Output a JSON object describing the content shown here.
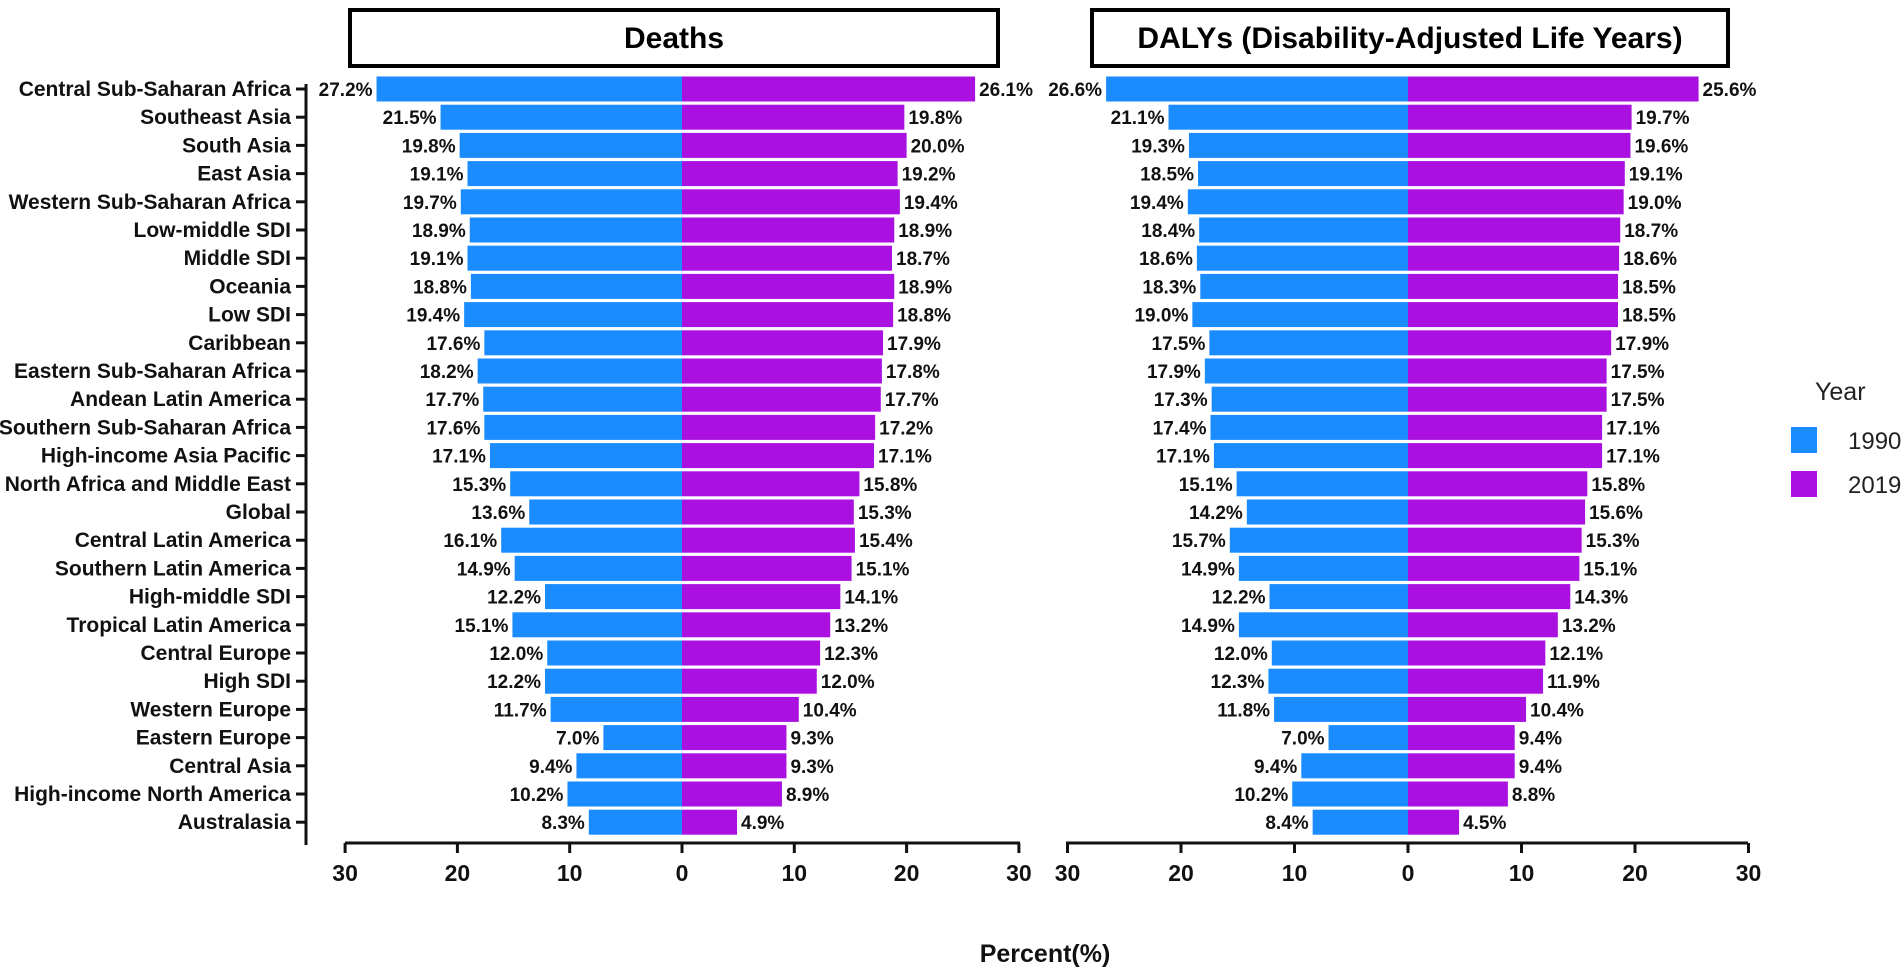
{
  "chart_data": {
    "type": "bar",
    "orientation": "horizontal-diverging",
    "xlabel": "Percent(%)",
    "xlim": [
      -30,
      30
    ],
    "xticks": [
      30,
      20,
      10,
      0,
      10,
      20,
      30
    ],
    "legend": {
      "title": "Year",
      "placement": "right",
      "entries": [
        {
          "name": "1990",
          "color": "#1a8cff"
        },
        {
          "name": "2019",
          "color": "#aa10e0"
        }
      ]
    },
    "categories": [
      "Central Sub-Saharan Africa",
      "Southeast Asia",
      "South Asia",
      "East Asia",
      "Western Sub-Saharan Africa",
      "Low-middle SDI",
      "Middle SDI",
      "Oceania",
      "Low SDI",
      "Caribbean",
      "Eastern Sub-Saharan Africa",
      "Andean Latin America",
      "Southern Sub-Saharan Africa",
      "High-income Asia Pacific",
      "North Africa and Middle East",
      "Global",
      "Central Latin America",
      "Southern Latin America",
      "High-middle SDI",
      "Tropical Latin America",
      "Central Europe",
      "High SDI",
      "Western Europe",
      "Eastern Europe",
      "Central Asia",
      "High-income North America",
      "Australasia"
    ],
    "panels": [
      {
        "title": "Deaths",
        "series": [
          {
            "name": "1990",
            "values": [
              27.2,
              21.5,
              19.8,
              19.1,
              19.7,
              18.9,
              19.1,
              18.8,
              19.4,
              17.6,
              18.2,
              17.7,
              17.6,
              17.1,
              15.3,
              13.6,
              16.1,
              14.9,
              12.2,
              15.1,
              12.0,
              12.2,
              11.7,
              7.0,
              9.4,
              10.2,
              8.3
            ]
          },
          {
            "name": "2019",
            "values": [
              26.1,
              19.8,
              20.0,
              19.2,
              19.4,
              18.9,
              18.7,
              18.9,
              18.8,
              17.9,
              17.8,
              17.7,
              17.2,
              17.1,
              15.8,
              15.3,
              15.4,
              15.1,
              14.1,
              13.2,
              12.3,
              12.0,
              10.4,
              9.3,
              9.3,
              8.9,
              4.9
            ]
          }
        ]
      },
      {
        "title": "DALYs (Disability-Adjusted Life Years)",
        "series": [
          {
            "name": "1990",
            "values": [
              26.6,
              21.1,
              19.3,
              18.5,
              19.4,
              18.4,
              18.6,
              18.3,
              19.0,
              17.5,
              17.9,
              17.3,
              17.4,
              17.1,
              15.1,
              14.2,
              15.7,
              14.9,
              12.2,
              14.9,
              12.0,
              12.3,
              11.8,
              7.0,
              9.4,
              10.2,
              8.4
            ]
          },
          {
            "name": "2019",
            "values": [
              25.6,
              19.7,
              19.6,
              19.1,
              19.0,
              18.7,
              18.6,
              18.5,
              18.5,
              17.9,
              17.5,
              17.5,
              17.1,
              17.1,
              15.8,
              15.6,
              15.3,
              15.1,
              14.3,
              13.2,
              12.1,
              11.9,
              10.4,
              9.4,
              9.4,
              8.8,
              4.5
            ]
          }
        ]
      }
    ]
  }
}
